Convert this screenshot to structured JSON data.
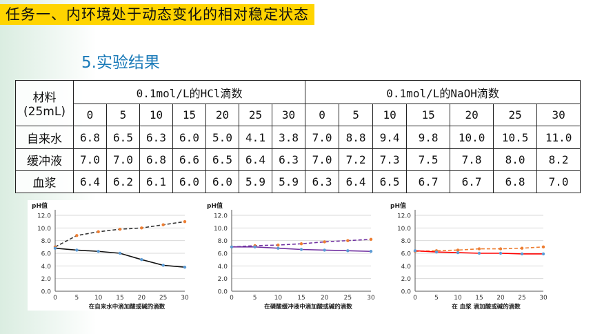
{
  "header": {
    "banner": "任务一、内环境处于动态变化的相对稳定状态",
    "subtitle": "5.实验结果"
  },
  "table": {
    "corner_line1": "材料",
    "corner_line2": "(25mL)",
    "group_hcl": "0.1mol/L的HCl滴数",
    "group_naoh": "0.1mol/L的NaOH滴数",
    "drops_hcl": [
      "0",
      "5",
      "10",
      "15",
      "20",
      "25",
      "30"
    ],
    "drops_naoh": [
      "0",
      "5",
      "10",
      "15",
      "20",
      "25",
      "30"
    ],
    "rows": [
      {
        "material": "自来水",
        "hcl": [
          "6.8",
          "6.5",
          "6.3",
          "6.0",
          "5.0",
          "4.1",
          "3.8"
        ],
        "naoh": [
          "7.0",
          "8.8",
          "9.4",
          "9.8",
          "10.0",
          "10.5",
          "11.0"
        ]
      },
      {
        "material": "缓冲液",
        "hcl": [
          "7.0",
          "7.0",
          "6.8",
          "6.6",
          "6.5",
          "6.4",
          "6.3"
        ],
        "naoh": [
          "7.0",
          "7.2",
          "7.3",
          "7.5",
          "7.8",
          "8.0",
          "8.2"
        ]
      },
      {
        "material": "血浆",
        "hcl": [
          "6.4",
          "6.2",
          "6.1",
          "6.0",
          "6.0",
          "5.9",
          "5.9"
        ],
        "naoh": [
          "6.3",
          "6.4",
          "6.5",
          "6.7",
          "6.7",
          "6.8",
          "7.0"
        ]
      }
    ]
  },
  "chart_data": [
    {
      "type": "line",
      "ylabel": "pH值",
      "xlabel": "在自来水中滴加酸或碱的滴数",
      "x": [
        0,
        5,
        10,
        15,
        20,
        25,
        30
      ],
      "ylim": [
        0,
        12
      ],
      "yticks": [
        "0.0",
        "2.0",
        "4.0",
        "6.0",
        "8.0",
        "10.0",
        "12.0"
      ],
      "xticks": [
        "0",
        "5",
        "10",
        "15",
        "20",
        "25",
        "30"
      ],
      "grid": true,
      "series": [
        {
          "values": [
            7.0,
            8.8,
            9.4,
            9.8,
            10.0,
            10.5,
            11.0
          ],
          "color": "#333333",
          "dash": true,
          "marker_color": "#ed7d31"
        },
        {
          "values": [
            6.8,
            6.5,
            6.3,
            6.0,
            5.0,
            4.1,
            3.8
          ],
          "color": "#111111",
          "dash": false,
          "marker_color": "#5b9bd5"
        }
      ]
    },
    {
      "type": "line",
      "ylabel": "pH值",
      "xlabel": "在磷酸缓冲液中滴加酸或碱的滴数",
      "x": [
        0,
        5,
        10,
        15,
        20,
        25,
        30
      ],
      "ylim": [
        0,
        12
      ],
      "yticks": [
        "0.0",
        "2.0",
        "4.0",
        "6.0",
        "8.0",
        "10.0",
        "12.0"
      ],
      "xticks": [
        "0",
        "5",
        "10",
        "15",
        "20",
        "25",
        "30"
      ],
      "grid": true,
      "series": [
        {
          "values": [
            7.0,
            7.2,
            7.3,
            7.5,
            7.8,
            8.0,
            8.2
          ],
          "color": "#7030a0",
          "dash": true,
          "marker_color": "#ed7d31"
        },
        {
          "values": [
            7.0,
            7.0,
            6.8,
            6.6,
            6.5,
            6.4,
            6.3
          ],
          "color": "#7030a0",
          "dash": false,
          "marker_color": "#5b9bd5"
        }
      ]
    },
    {
      "type": "line",
      "ylabel": "pH值",
      "xlabel": "在  血浆  滴加酸或碱的滴数",
      "x": [
        0,
        5,
        10,
        15,
        20,
        25,
        30
      ],
      "ylim": [
        0,
        12
      ],
      "yticks": [
        "0.0",
        "2.0",
        "4.0",
        "6.0",
        "8.0",
        "10.0",
        "12.0"
      ],
      "xticks": [
        "0",
        "5",
        "10",
        "15",
        "20",
        "25",
        "30"
      ],
      "grid": true,
      "series": [
        {
          "values": [
            6.3,
            6.4,
            6.5,
            6.7,
            6.7,
            6.8,
            7.0
          ],
          "color": "#ed7d31",
          "dash": true,
          "marker_color": "#ed7d31"
        },
        {
          "values": [
            6.4,
            6.2,
            6.1,
            6.0,
            6.0,
            5.9,
            5.9
          ],
          "color": "#ff0000",
          "dash": false,
          "marker_color": "#5b9bd5"
        }
      ]
    }
  ]
}
